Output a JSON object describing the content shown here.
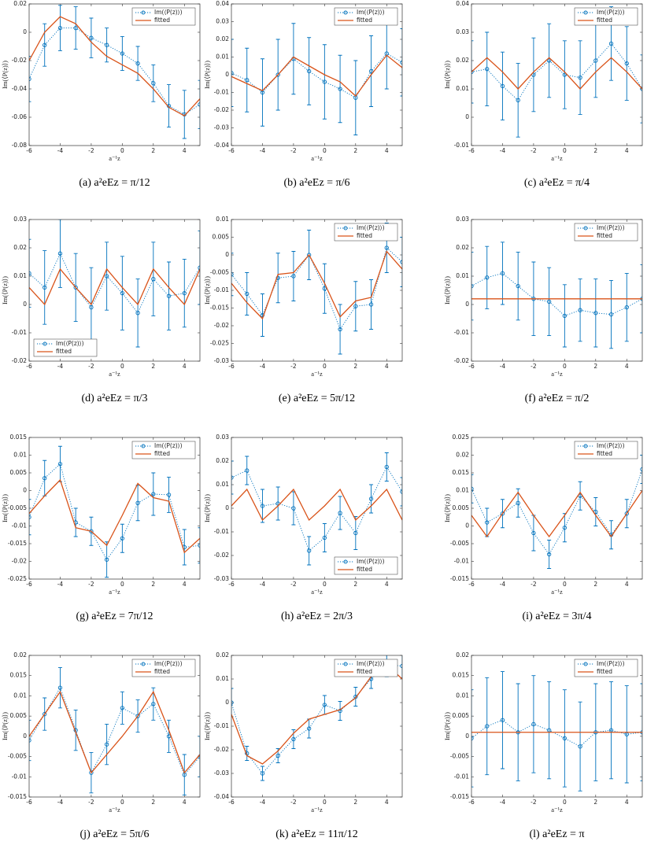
{
  "chart_data": [
    {
      "type": "errorbar",
      "caption": "(a) a²eEz = π/12",
      "xlabel": "a⁻¹z",
      "ylabel": "Im(⟨P(z)⟩)",
      "legend": "upper right",
      "x": [
        -6,
        -5,
        -4,
        -3,
        -2,
        -1,
        0,
        1,
        2,
        3,
        4,
        5
      ],
      "xlim": [
        -6,
        5
      ],
      "xticks": [
        -6,
        -4,
        -2,
        0,
        2,
        4
      ],
      "ylim": [
        -0.08,
        0.02
      ],
      "yticks": [
        -0.08,
        -0.06,
        -0.04,
        -0.02,
        0,
        0.02
      ],
      "series": [
        {
          "name": "Im(⟨P(z)⟩)",
          "color": "#0072bd",
          "values": [
            -0.033,
            -0.009,
            0.003,
            0.003,
            -0.004,
            -0.009,
            -0.015,
            -0.022,
            -0.036,
            -0.052,
            -0.058,
            -0.051
          ],
          "errors": [
            0.016,
            0.015,
            0.016,
            0.015,
            0.014,
            0.012,
            0.012,
            0.012,
            0.013,
            0.015,
            0.017,
            0.017
          ]
        },
        {
          "name": "fitted",
          "color": "#d95319",
          "values": [
            -0.02,
            0.0,
            0.011,
            0.006,
            -0.007,
            -0.017,
            -0.023,
            -0.029,
            -0.04,
            -0.053,
            -0.059,
            -0.047
          ]
        }
      ]
    },
    {
      "type": "errorbar",
      "caption": "(b) a²eEz = π/6",
      "xlabel": "a⁻¹z",
      "ylabel": "Im(⟨P(z)⟩)",
      "legend": "upper right",
      "x": [
        -6,
        -5,
        -4,
        -3,
        -2,
        -1,
        0,
        1,
        2,
        3,
        4,
        5
      ],
      "xlim": [
        -6,
        5
      ],
      "xticks": [
        -6,
        -4,
        -2,
        0,
        2,
        4
      ],
      "ylim": [
        -0.04,
        0.04
      ],
      "yticks": [
        -0.04,
        -0.03,
        -0.02,
        -0.01,
        0,
        0.01,
        0.02,
        0.03,
        0.04
      ],
      "series": [
        {
          "name": "Im(⟨P(z)⟩)",
          "color": "#0072bd",
          "values": [
            0.001,
            -0.003,
            -0.01,
            0.0,
            0.009,
            0.002,
            -0.004,
            -0.008,
            -0.013,
            0.002,
            0.012,
            0.007
          ],
          "errors": [
            0.019,
            0.018,
            0.019,
            0.02,
            0.02,
            0.019,
            0.021,
            0.019,
            0.021,
            0.02,
            0.02,
            0.019
          ]
        },
        {
          "name": "fitted",
          "color": "#d95319",
          "values": [
            -0.001,
            -0.005,
            -0.009,
            0.0,
            0.01,
            0.005,
            0.0,
            -0.004,
            -0.012,
            0.0,
            0.011,
            0.004
          ]
        }
      ]
    },
    {
      "type": "errorbar",
      "caption": "(c) a²eEz = π/4",
      "xlabel": "a⁻¹z",
      "ylabel": "Im(⟨P(z)⟩)",
      "legend": "upper right",
      "x": [
        -6,
        -5,
        -4,
        -3,
        -2,
        -1,
        0,
        1,
        2,
        3,
        4,
        5
      ],
      "xlim": [
        -6,
        5
      ],
      "xticks": [
        -6,
        -4,
        -2,
        0,
        2,
        4
      ],
      "ylim": [
        -0.01,
        0.04
      ],
      "yticks": [
        -0.01,
        0,
        0.01,
        0.02,
        0.03,
        0.04
      ],
      "series": [
        {
          "name": "Im(⟨P(z)⟩)",
          "color": "#0072bd",
          "values": [
            0.016,
            0.017,
            0.011,
            0.006,
            0.015,
            0.02,
            0.015,
            0.014,
            0.02,
            0.026,
            0.019,
            0.01
          ],
          "errors": [
            0.011,
            0.013,
            0.012,
            0.013,
            0.013,
            0.013,
            0.012,
            0.013,
            0.013,
            0.013,
            0.013,
            0.012
          ]
        },
        {
          "name": "fitted",
          "color": "#d95319",
          "values": [
            0.016,
            0.021,
            0.016,
            0.01,
            0.016,
            0.021,
            0.016,
            0.01,
            0.016,
            0.021,
            0.016,
            0.01
          ]
        }
      ]
    },
    {
      "type": "errorbar",
      "caption": "(d) a²eEz = π/3",
      "xlabel": "a⁻¹z",
      "ylabel": "Im(⟨P(z)⟩)",
      "legend": "lower left",
      "x": [
        -6,
        -5,
        -4,
        -3,
        -2,
        -1,
        0,
        1,
        2,
        3,
        4,
        5
      ],
      "xlim": [
        -6,
        5
      ],
      "xticks": [
        -6,
        -4,
        -2,
        0,
        2,
        4
      ],
      "ylim": [
        -0.02,
        0.03
      ],
      "yticks": [
        -0.02,
        -0.01,
        0,
        0.01,
        0.02,
        0.03
      ],
      "series": [
        {
          "name": "Im(⟨P(z)⟩)",
          "color": "#0072bd",
          "values": [
            0.011,
            0.006,
            0.018,
            0.006,
            -0.001,
            0.01,
            0.004,
            -0.003,
            0.009,
            0.003,
            0.004,
            0.013
          ],
          "errors": [
            0.012,
            0.013,
            0.012,
            0.012,
            0.014,
            0.012,
            0.013,
            0.012,
            0.013,
            0.012,
            0.012,
            0.013
          ]
        },
        {
          "name": "fitted",
          "color": "#d95319",
          "values": [
            0.006,
            0.0,
            0.0125,
            0.006,
            0.0,
            0.0125,
            0.006,
            0.0,
            0.0125,
            0.006,
            0.0,
            0.0125
          ]
        }
      ]
    },
    {
      "type": "errorbar",
      "caption": "(e) a²eEz = 5π/12",
      "xlabel": "a⁻¹z",
      "ylabel": "Im(⟨P(z)⟩)",
      "legend": "upper right",
      "x": [
        -6,
        -5,
        -4,
        -3,
        -2,
        -1,
        0,
        1,
        2,
        3,
        4,
        5
      ],
      "xlim": [
        -6,
        5
      ],
      "xticks": [
        -6,
        -4,
        -2,
        0,
        2,
        4
      ],
      "ylim": [
        -0.03,
        0.01
      ],
      "yticks": [
        -0.03,
        -0.025,
        -0.02,
        -0.015,
        -0.01,
        -0.005,
        0,
        0.005,
        0.01
      ],
      "series": [
        {
          "name": "Im(⟨P(z)⟩)",
          "color": "#0072bd",
          "values": [
            -0.0055,
            -0.011,
            -0.017,
            -0.0065,
            -0.006,
            0.0,
            -0.0095,
            -0.021,
            -0.0145,
            -0.014,
            0.002,
            -0.002
          ],
          "errors": [
            0.006,
            0.006,
            0.006,
            0.007,
            0.007,
            0.007,
            0.007,
            0.007,
            0.007,
            0.007,
            0.007,
            0.007
          ]
        },
        {
          "name": "fitted",
          "color": "#d95319",
          "values": [
            -0.008,
            -0.0135,
            -0.018,
            -0.0055,
            -0.005,
            0.0,
            -0.008,
            -0.0175,
            -0.013,
            -0.012,
            0.001,
            -0.004
          ]
        }
      ]
    },
    {
      "type": "errorbar",
      "caption": "(f) a²eEz = π/2",
      "xlabel": "a⁻¹z",
      "ylabel": "Im(⟨P(z)⟩)",
      "legend": "upper right",
      "x": [
        -6,
        -5,
        -4,
        -3,
        -2,
        -1,
        0,
        1,
        2,
        3,
        4,
        5
      ],
      "xlim": [
        -6,
        5
      ],
      "xticks": [
        -6,
        -4,
        -2,
        0,
        2,
        4
      ],
      "ylim": [
        -0.02,
        0.03
      ],
      "yticks": [
        -0.02,
        -0.01,
        0,
        0.01,
        0.02,
        0.03
      ],
      "series": [
        {
          "name": "Im(⟨P(z)⟩)",
          "color": "#0072bd",
          "values": [
            0.0065,
            0.0095,
            0.011,
            0.0065,
            0.002,
            0.001,
            -0.004,
            -0.002,
            -0.003,
            -0.0035,
            -0.001,
            0.002
          ],
          "errors": [
            0.012,
            0.011,
            0.011,
            0.012,
            0.013,
            0.012,
            0.011,
            0.011,
            0.012,
            0.012,
            0.012,
            0.012
          ]
        },
        {
          "name": "fitted",
          "color": "#d95319",
          "values": [
            0.002,
            0.002,
            0.002,
            0.002,
            0.002,
            0.002,
            0.002,
            0.002,
            0.002,
            0.002,
            0.002,
            0.002
          ]
        }
      ]
    },
    {
      "type": "errorbar",
      "caption": "(g) a²eEz = 7π/12",
      "xlabel": "a⁻¹z",
      "ylabel": "Im(⟨P(z)⟩)",
      "legend": "upper right",
      "x": [
        -6,
        -5,
        -4,
        -3,
        -2,
        -1,
        0,
        1,
        2,
        3,
        4,
        5
      ],
      "xlim": [
        -6,
        5
      ],
      "xticks": [
        -6,
        -4,
        -2,
        0,
        2,
        4
      ],
      "ylim": [
        -0.025,
        0.015
      ],
      "yticks": [
        -0.025,
        -0.02,
        -0.015,
        -0.01,
        -0.005,
        0,
        0.005,
        0.01,
        0.015
      ],
      "series": [
        {
          "name": "Im(⟨P(z)⟩)",
          "color": "#0072bd",
          "values": [
            -0.0075,
            0.0035,
            0.0075,
            -0.009,
            -0.0115,
            -0.0195,
            -0.0135,
            -0.0035,
            -0.001,
            -0.0012,
            -0.016,
            -0.0155
          ],
          "errors": [
            0.005,
            0.005,
            0.005,
            0.004,
            0.004,
            0.005,
            0.004,
            0.005,
            0.006,
            0.005,
            0.005,
            0.005
          ]
        },
        {
          "name": "fitted",
          "color": "#d95319",
          "values": [
            -0.0065,
            -0.0015,
            0.003,
            -0.0105,
            -0.0115,
            -0.0155,
            -0.007,
            0.002,
            -0.002,
            -0.003,
            -0.0175,
            -0.0135
          ]
        }
      ]
    },
    {
      "type": "errorbar",
      "caption": "(h) a²eEz = 2π/3",
      "xlabel": "a⁻¹z",
      "ylabel": "Im(⟨P(z)⟩)",
      "legend": "lower right",
      "x": [
        -6,
        -5,
        -4,
        -3,
        -2,
        -1,
        0,
        1,
        2,
        3,
        4,
        5
      ],
      "xlim": [
        -6,
        5
      ],
      "xticks": [
        -6,
        -4,
        -2,
        0,
        2,
        4
      ],
      "ylim": [
        -0.03,
        0.03
      ],
      "yticks": [
        -0.03,
        -0.02,
        -0.01,
        0,
        0.01,
        0.02,
        0.03
      ],
      "series": [
        {
          "name": "Im(⟨P(z)⟩)",
          "color": "#0072bd",
          "values": [
            0.013,
            0.016,
            0.001,
            0.002,
            0.0,
            -0.018,
            -0.0125,
            -0.002,
            -0.0105,
            0.004,
            0.0175,
            0.007
          ],
          "errors": [
            0.007,
            0.006,
            0.007,
            0.007,
            0.007,
            0.006,
            0.006,
            0.007,
            0.007,
            0.006,
            0.006,
            0.006
          ]
        },
        {
          "name": "fitted",
          "color": "#d95319",
          "values": [
            0.001,
            0.008,
            -0.005,
            0.001,
            0.008,
            -0.005,
            0.001,
            0.008,
            -0.005,
            0.001,
            0.008,
            -0.005
          ]
        }
      ]
    },
    {
      "type": "errorbar",
      "caption": "(i) a²eEz = 3π/4",
      "xlabel": "a⁻¹z",
      "ylabel": "Im(⟨P(z)⟩)",
      "legend": "upper right",
      "x": [
        -6,
        -5,
        -4,
        -3,
        -2,
        -1,
        0,
        1,
        2,
        3,
        4,
        5
      ],
      "xlim": [
        -6,
        5
      ],
      "xticks": [
        -6,
        -4,
        -2,
        0,
        2,
        4
      ],
      "ylim": [
        -0.015,
        0.025
      ],
      "yticks": [
        -0.015,
        -0.01,
        -0.005,
        0,
        0.005,
        0.01,
        0.015,
        0.02,
        0.025
      ],
      "series": [
        {
          "name": "Im(⟨P(z)⟩)",
          "color": "#0072bd",
          "values": [
            0.0105,
            0.001,
            0.0035,
            0.0065,
            -0.002,
            -0.008,
            -0.0005,
            0.0085,
            0.004,
            -0.0025,
            0.0035,
            0.016
          ],
          "errors": [
            0.004,
            0.004,
            0.004,
            0.004,
            0.005,
            0.004,
            0.004,
            0.004,
            0.004,
            0.004,
            0.004,
            0.004
          ]
        },
        {
          "name": "fitted",
          "color": "#d95319",
          "values": [
            0.003,
            -0.003,
            0.0035,
            0.0095,
            0.003,
            -0.003,
            0.003,
            0.0095,
            0.003,
            -0.003,
            0.0035,
            0.01
          ]
        }
      ]
    },
    {
      "type": "errorbar",
      "caption": "(j) a²eEz = 5π/6",
      "xlabel": "a⁻¹z",
      "ylabel": "Im(⟨P(z)⟩)",
      "legend": "upper right",
      "x": [
        -6,
        -5,
        -4,
        -3,
        -2,
        -1,
        0,
        1,
        2,
        3,
        4,
        5
      ],
      "xlim": [
        -6,
        5
      ],
      "xticks": [
        -6,
        -4,
        -2,
        0,
        2,
        4
      ],
      "ylim": [
        -0.015,
        0.02
      ],
      "yticks": [
        -0.015,
        -0.01,
        -0.005,
        0,
        0.005,
        0.01,
        0.015,
        0.02
      ],
      "series": [
        {
          "name": "Im(⟨P(z)⟩)",
          "color": "#0072bd",
          "values": [
            -0.001,
            0.0055,
            0.012,
            0.0015,
            -0.009,
            -0.002,
            0.007,
            0.005,
            0.008,
            0.0,
            -0.0095,
            -0.005
          ],
          "errors": [
            0.005,
            0.004,
            0.005,
            0.005,
            0.005,
            0.005,
            0.004,
            0.004,
            0.004,
            0.004,
            0.005,
            0.005
          ]
        },
        {
          "name": "fitted",
          "color": "#d95319",
          "values": [
            0.0,
            0.0055,
            0.011,
            0.001,
            -0.009,
            -0.0045,
            0.0,
            0.005,
            0.011,
            0.0015,
            -0.009,
            -0.0045
          ]
        }
      ]
    },
    {
      "type": "errorbar",
      "caption": "(k) a²eEz = 11π/12",
      "xlabel": "a⁻¹z",
      "ylabel": "Im(⟨P(z)⟩)",
      "legend": "upper right",
      "x": [
        -6,
        -5,
        -4,
        -3,
        -2,
        -1,
        0,
        1,
        2,
        3,
        4,
        5
      ],
      "xlim": [
        -6,
        5
      ],
      "xticks": [
        -6,
        -4,
        -2,
        0,
        2,
        4
      ],
      "ylim": [
        -0.04,
        0.02
      ],
      "yticks": [
        -0.04,
        -0.03,
        -0.02,
        -0.01,
        0,
        0.01,
        0.02
      ],
      "series": [
        {
          "name": "Im(⟨P(z)⟩)",
          "color": "#0072bd",
          "values": [
            0.0,
            -0.0215,
            -0.03,
            -0.0225,
            -0.0155,
            -0.011,
            -0.001,
            -0.0035,
            0.0025,
            0.01,
            0.016,
            0.0155
          ],
          "errors": [
            0.006,
            0.003,
            0.003,
            0.003,
            0.004,
            0.004,
            0.004,
            0.004,
            0.004,
            0.004,
            0.005,
            0.005
          ]
        },
        {
          "name": "fitted",
          "color": "#d95319",
          "values": [
            -0.005,
            -0.0225,
            -0.026,
            -0.0205,
            -0.013,
            -0.007,
            -0.005,
            -0.003,
            0.002,
            0.011,
            0.016,
            0.01
          ]
        }
      ]
    },
    {
      "type": "errorbar",
      "caption": "(l) a²eEz = π",
      "xlabel": "a⁻¹z",
      "ylabel": "Im(⟨P(z)⟩)",
      "legend": "upper right",
      "x": [
        -6,
        -5,
        -4,
        -3,
        -2,
        -1,
        0,
        1,
        2,
        3,
        4,
        5
      ],
      "xlim": [
        -6,
        5
      ],
      "xticks": [
        -6,
        -4,
        -2,
        0,
        2,
        4
      ],
      "ylim": [
        -0.015,
        0.02
      ],
      "yticks": [
        -0.015,
        -0.01,
        -0.005,
        0,
        0.005,
        0.01,
        0.015,
        0.02
      ],
      "series": [
        {
          "name": "Im(⟨P(z)⟩)",
          "color": "#0072bd",
          "values": [
            -0.0005,
            0.0025,
            0.004,
            0.001,
            0.003,
            0.0015,
            -0.0005,
            -0.0025,
            0.001,
            0.0015,
            0.0005,
            0.001
          ],
          "errors": [
            0.012,
            0.012,
            0.012,
            0.012,
            0.012,
            0.012,
            0.012,
            0.011,
            0.012,
            0.012,
            0.012,
            0.012
          ]
        },
        {
          "name": "fitted",
          "color": "#d95319",
          "values": [
            0.001,
            0.001,
            0.001,
            0.001,
            0.001,
            0.001,
            0.001,
            0.001,
            0.001,
            0.001,
            0.001,
            0.001
          ]
        }
      ]
    }
  ]
}
